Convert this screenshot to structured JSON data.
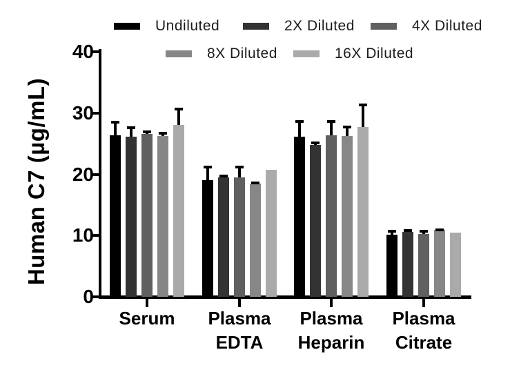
{
  "chart_data": {
    "type": "bar",
    "title": "",
    "ylabel": "Human C7 (µg/mL)",
    "xlabel": "",
    "ylim": [
      0,
      40
    ],
    "yticks": [
      0,
      10,
      20,
      30,
      40
    ],
    "grid": false,
    "legend_position": "top",
    "error_bars": "upper only",
    "categories": [
      "Serum",
      "Plasma EDTA",
      "Plasma Heparin",
      "Plasma Citrate"
    ],
    "category_lines": [
      [
        "Serum"
      ],
      [
        "Plasma",
        "EDTA"
      ],
      [
        "Plasma",
        "Heparin"
      ],
      [
        "Plasma",
        "Citrate"
      ]
    ],
    "series": [
      {
        "name": "Undiluted",
        "color": "#000000",
        "values": [
          26.4,
          19.0,
          26.1,
          10.1
        ],
        "errors": [
          2.3,
          2.4,
          2.8,
          0.8
        ]
      },
      {
        "name": "2X Diluted",
        "color": "#333333",
        "values": [
          26.1,
          19.5,
          24.8,
          10.6
        ],
        "errors": [
          1.7,
          0.4,
          0.5,
          0.4
        ]
      },
      {
        "name": "4X Diluted",
        "color": "#606060",
        "values": [
          26.6,
          19.5,
          26.4,
          10.3
        ],
        "errors": [
          0.6,
          1.9,
          2.5,
          0.6
        ]
      },
      {
        "name": "8X Diluted",
        "color": "#878787",
        "values": [
          26.2,
          18.5,
          26.3,
          10.9
        ],
        "errors": [
          0.7,
          0.3,
          1.7,
          0.3
        ]
      },
      {
        "name": "16X Diluted",
        "color": "#aaaaaa",
        "values": [
          28.1,
          20.7,
          27.7,
          10.5
        ],
        "errors": [
          2.8,
          0.0,
          3.8,
          0.0
        ]
      }
    ],
    "axis_color": "#000000",
    "background_color": "#ffffff"
  }
}
